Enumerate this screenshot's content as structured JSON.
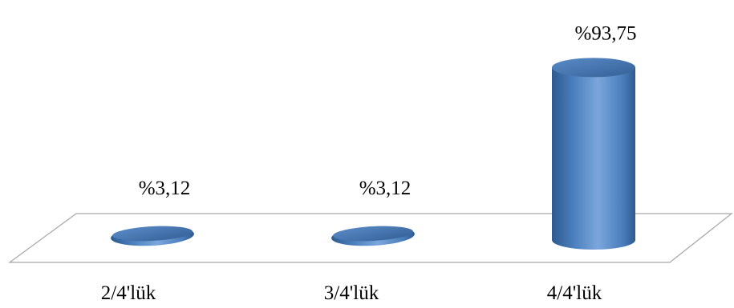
{
  "chart_data": {
    "type": "bar",
    "style": "3d-cylinder",
    "categories": [
      "2/4'lük",
      "3/4'lük",
      "4/4'lük"
    ],
    "values": [
      3.12,
      3.12,
      93.75
    ],
    "data_labels": [
      "%3,12",
      "%3,12",
      "%93,75"
    ],
    "ylim": [
      0,
      100
    ],
    "grid": false,
    "legend": "none",
    "colors": {
      "bar": "#4a7ebb",
      "bar_dark": "#2e5a8f",
      "bar_light": "#7aa6dc",
      "top": "#3b6ca8",
      "floor_stroke": "#a6a6a6"
    }
  }
}
